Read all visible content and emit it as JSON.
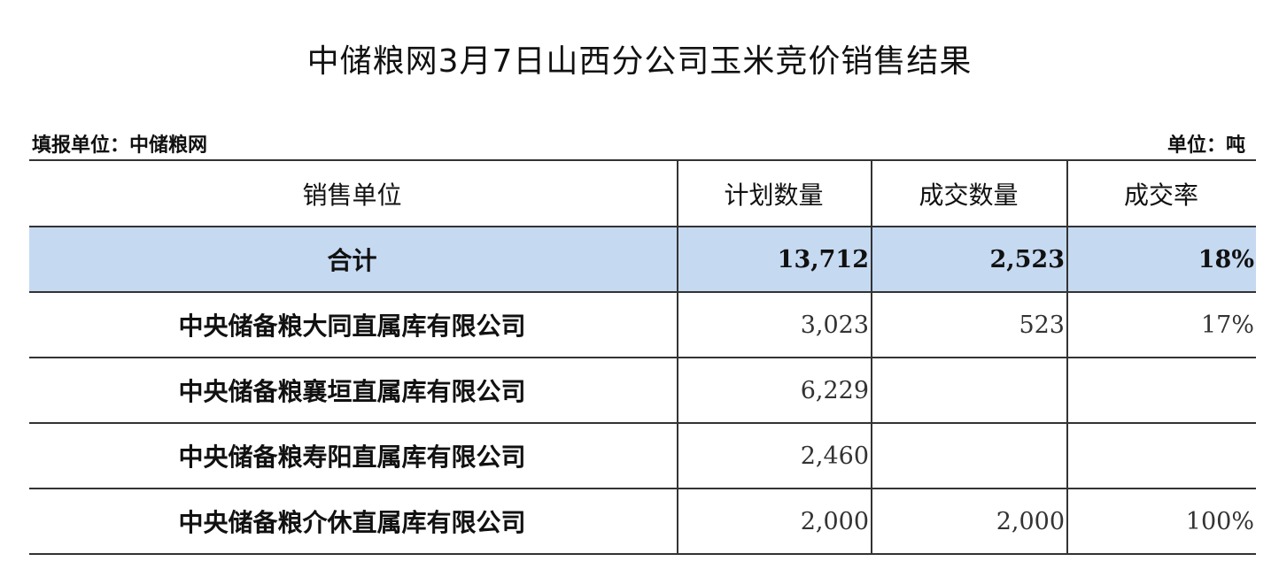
{
  "title": "中储粮网3月7日山西分公司玉米竞价销售结果",
  "reporter": "填报单位：中储粮网",
  "unit": "单位：吨",
  "table": {
    "headers": [
      "销售单位",
      "计划数量",
      "成交数量",
      "成交率"
    ],
    "total": {
      "name": "合计",
      "planned": "13,712",
      "traded": "2,523",
      "rate": "18%"
    },
    "rows": [
      {
        "name": "中央储备粮大同直属库有限公司",
        "planned": "3,023",
        "traded": "523",
        "rate": "17%"
      },
      {
        "name": "中央储备粮襄垣直属库有限公司",
        "planned": "6,229",
        "traded": "",
        "rate": ""
      },
      {
        "name": "中央储备粮寿阳直属库有限公司",
        "planned": "2,460",
        "traded": "",
        "rate": ""
      },
      {
        "name": "中央储备粮介休直属库有限公司",
        "planned": "2,000",
        "traded": "2,000",
        "rate": "100%"
      }
    ]
  },
  "colors": {
    "total_row_bg": "#c5d9f1"
  }
}
